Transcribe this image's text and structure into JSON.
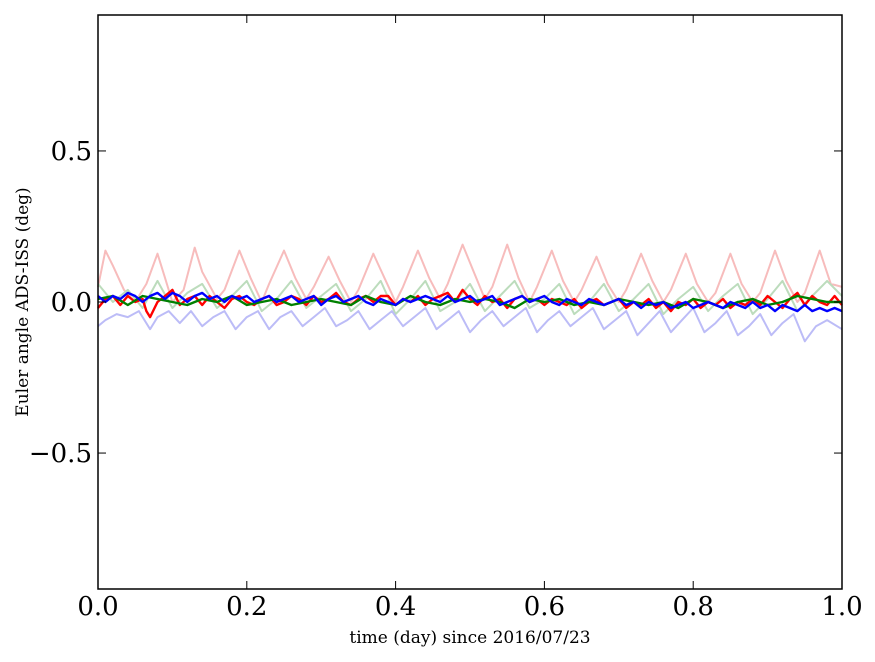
{
  "chart_data": {
    "type": "line",
    "xlabel": "time (day) since 2016/07/23",
    "ylabel": "Euler angle ADS-ISS (deg)",
    "xlim": [
      0.0,
      1.0
    ],
    "ylim": [
      -0.95,
      0.95
    ],
    "grid": false,
    "x_ticks": [
      "0.0",
      "0.2",
      "0.4",
      "0.6",
      "0.8",
      "1.0"
    ],
    "y_ticks": [
      "−0.5",
      "0.0",
      "0.5"
    ],
    "x_tick_values": [
      0.0,
      0.2,
      0.4,
      0.6,
      0.8,
      1.0
    ],
    "y_tick_values": [
      -0.5,
      0.0,
      0.5
    ],
    "colors": {
      "red": "#ff0000",
      "green": "#008000",
      "blue": "#0000ff",
      "light_red": "#f7bcbc",
      "light_green": "#bcdcbc",
      "light_blue": "#bcbcf7"
    },
    "series": [
      {
        "color": "#f7bcbc",
        "faded": true,
        "x": [
          0.0,
          0.01,
          0.02,
          0.035,
          0.05,
          0.065,
          0.08,
          0.09,
          0.1,
          0.115,
          0.13,
          0.14,
          0.16,
          0.17,
          0.19,
          0.205,
          0.22,
          0.23,
          0.25,
          0.265,
          0.28,
          0.29,
          0.31,
          0.325,
          0.34,
          0.35,
          0.37,
          0.385,
          0.4,
          0.41,
          0.43,
          0.445,
          0.46,
          0.47,
          0.49,
          0.505,
          0.52,
          0.53,
          0.55,
          0.565,
          0.58,
          0.59,
          0.61,
          0.625,
          0.64,
          0.65,
          0.67,
          0.685,
          0.7,
          0.71,
          0.73,
          0.745,
          0.76,
          0.77,
          0.79,
          0.805,
          0.82,
          0.83,
          0.85,
          0.865,
          0.88,
          0.89,
          0.91,
          0.925,
          0.94,
          0.95,
          0.97,
          0.985,
          1.0
        ],
        "y": [
          0.05,
          0.17,
          0.12,
          0.04,
          0.0,
          0.06,
          0.16,
          0.08,
          0.0,
          0.04,
          0.18,
          0.1,
          0.01,
          0.04,
          0.17,
          0.08,
          0.0,
          0.06,
          0.17,
          0.08,
          0.01,
          0.05,
          0.15,
          0.07,
          0.0,
          0.04,
          0.16,
          0.08,
          0.0,
          0.05,
          0.17,
          0.08,
          0.01,
          0.06,
          0.19,
          0.1,
          0.01,
          0.05,
          0.19,
          0.08,
          0.0,
          0.05,
          0.17,
          0.07,
          0.0,
          0.04,
          0.15,
          0.06,
          0.0,
          0.04,
          0.16,
          0.07,
          0.0,
          0.04,
          0.16,
          0.06,
          0.0,
          0.03,
          0.16,
          0.06,
          0.0,
          0.03,
          0.17,
          0.07,
          0.0,
          0.03,
          0.17,
          0.06,
          0.05
        ]
      },
      {
        "color": "#bcdcbc",
        "faded": true,
        "x": [
          0.0,
          0.02,
          0.04,
          0.06,
          0.08,
          0.1,
          0.12,
          0.14,
          0.16,
          0.18,
          0.2,
          0.22,
          0.24,
          0.26,
          0.28,
          0.3,
          0.32,
          0.34,
          0.36,
          0.38,
          0.4,
          0.42,
          0.44,
          0.46,
          0.48,
          0.5,
          0.52,
          0.54,
          0.56,
          0.58,
          0.6,
          0.62,
          0.64,
          0.66,
          0.68,
          0.7,
          0.72,
          0.74,
          0.76,
          0.78,
          0.8,
          0.82,
          0.84,
          0.86,
          0.88,
          0.9,
          0.92,
          0.94,
          0.96,
          0.98,
          1.0
        ],
        "y": [
          0.06,
          0.0,
          0.04,
          -0.02,
          0.07,
          -0.02,
          0.03,
          0.06,
          -0.02,
          0.02,
          0.07,
          -0.03,
          0.01,
          0.07,
          -0.02,
          0.02,
          0.06,
          -0.03,
          0.01,
          0.07,
          -0.04,
          0.01,
          0.07,
          -0.03,
          0.0,
          0.06,
          -0.03,
          0.02,
          0.07,
          -0.02,
          0.01,
          0.06,
          -0.04,
          0.0,
          0.06,
          -0.03,
          0.01,
          0.06,
          -0.04,
          0.01,
          0.05,
          -0.03,
          0.02,
          0.06,
          -0.04,
          0.01,
          0.07,
          -0.03,
          0.02,
          0.07,
          0.02
        ]
      },
      {
        "color": "#bcbcf7",
        "faded": true,
        "x": [
          0.0,
          0.01,
          0.025,
          0.04,
          0.055,
          0.07,
          0.08,
          0.095,
          0.11,
          0.125,
          0.14,
          0.155,
          0.17,
          0.185,
          0.2,
          0.215,
          0.23,
          0.245,
          0.26,
          0.275,
          0.29,
          0.305,
          0.32,
          0.335,
          0.35,
          0.365,
          0.38,
          0.395,
          0.41,
          0.425,
          0.44,
          0.455,
          0.47,
          0.485,
          0.5,
          0.515,
          0.53,
          0.545,
          0.56,
          0.575,
          0.59,
          0.605,
          0.62,
          0.635,
          0.65,
          0.665,
          0.68,
          0.695,
          0.71,
          0.725,
          0.74,
          0.755,
          0.77,
          0.785,
          0.8,
          0.815,
          0.83,
          0.845,
          0.86,
          0.875,
          0.89,
          0.905,
          0.92,
          0.935,
          0.95,
          0.965,
          0.98,
          1.0
        ],
        "y": [
          -0.08,
          -0.06,
          -0.04,
          -0.05,
          -0.03,
          -0.09,
          -0.05,
          -0.03,
          -0.07,
          -0.03,
          -0.08,
          -0.05,
          -0.03,
          -0.09,
          -0.05,
          -0.03,
          -0.09,
          -0.05,
          -0.03,
          -0.08,
          -0.05,
          -0.02,
          -0.08,
          -0.06,
          -0.03,
          -0.09,
          -0.06,
          -0.03,
          -0.08,
          -0.05,
          -0.02,
          -0.09,
          -0.06,
          -0.03,
          -0.1,
          -0.06,
          -0.03,
          -0.08,
          -0.05,
          -0.02,
          -0.1,
          -0.06,
          -0.03,
          -0.08,
          -0.05,
          -0.02,
          -0.09,
          -0.06,
          -0.03,
          -0.11,
          -0.07,
          -0.03,
          -0.1,
          -0.06,
          -0.02,
          -0.1,
          -0.07,
          -0.03,
          -0.11,
          -0.08,
          -0.04,
          -0.11,
          -0.07,
          -0.04,
          -0.13,
          -0.08,
          -0.06,
          -0.09
        ]
      },
      {
        "color": "#ff0000",
        "faded": false,
        "x": [
          0.0,
          0.01,
          0.02,
          0.03,
          0.04,
          0.05,
          0.06,
          0.065,
          0.07,
          0.08,
          0.09,
          0.1,
          0.11,
          0.12,
          0.13,
          0.14,
          0.15,
          0.16,
          0.17,
          0.18,
          0.19,
          0.2,
          0.21,
          0.22,
          0.23,
          0.24,
          0.25,
          0.26,
          0.27,
          0.28,
          0.29,
          0.3,
          0.31,
          0.32,
          0.33,
          0.34,
          0.35,
          0.36,
          0.37,
          0.38,
          0.39,
          0.4,
          0.41,
          0.42,
          0.43,
          0.44,
          0.45,
          0.46,
          0.47,
          0.48,
          0.49,
          0.5,
          0.51,
          0.52,
          0.53,
          0.54,
          0.55,
          0.56,
          0.57,
          0.58,
          0.59,
          0.6,
          0.61,
          0.62,
          0.63,
          0.64,
          0.65,
          0.66,
          0.67,
          0.68,
          0.69,
          0.7,
          0.71,
          0.72,
          0.73,
          0.74,
          0.75,
          0.76,
          0.77,
          0.78,
          0.79,
          0.8,
          0.81,
          0.82,
          0.83,
          0.84,
          0.85,
          0.86,
          0.87,
          0.88,
          0.89,
          0.9,
          0.91,
          0.92,
          0.93,
          0.94,
          0.95,
          0.96,
          0.97,
          0.98,
          0.99,
          1.0
        ],
        "y": [
          -0.02,
          0.01,
          0.02,
          -0.01,
          0.02,
          0.0,
          0.01,
          -0.03,
          -0.05,
          0.0,
          0.02,
          0.04,
          -0.01,
          0.01,
          0.02,
          -0.01,
          0.02,
          0.0,
          -0.02,
          0.01,
          0.02,
          0.0,
          -0.01,
          0.01,
          0.02,
          -0.01,
          0.0,
          0.02,
          0.01,
          -0.01,
          0.02,
          0.0,
          0.01,
          0.03,
          0.0,
          -0.01,
          0.01,
          0.02,
          0.0,
          0.02,
          0.02,
          -0.01,
          0.01,
          0.0,
          0.02,
          -0.01,
          0.01,
          0.02,
          0.03,
          0.0,
          0.04,
          0.01,
          -0.01,
          0.02,
          0.0,
          0.01,
          -0.02,
          0.01,
          0.02,
          0.0,
          0.01,
          -0.01,
          0.01,
          0.0,
          -0.01,
          0.01,
          -0.02,
          0.0,
          0.01,
          -0.01,
          0.0,
          0.01,
          -0.02,
          0.0,
          -0.01,
          0.01,
          -0.02,
          0.0,
          -0.03,
          0.0,
          -0.01,
          0.01,
          -0.02,
          0.0,
          -0.01,
          0.01,
          -0.02,
          0.0,
          -0.01,
          0.01,
          -0.01,
          0.02,
          0.0,
          -0.02,
          0.01,
          0.03,
          -0.01,
          0.02,
          0.0,
          -0.01,
          0.02,
          -0.01
        ]
      },
      {
        "color": "#008000",
        "faded": false,
        "x": [
          0.0,
          0.02,
          0.04,
          0.06,
          0.08,
          0.1,
          0.12,
          0.14,
          0.16,
          0.18,
          0.2,
          0.22,
          0.24,
          0.26,
          0.28,
          0.3,
          0.32,
          0.34,
          0.36,
          0.38,
          0.4,
          0.42,
          0.44,
          0.46,
          0.48,
          0.5,
          0.52,
          0.54,
          0.56,
          0.58,
          0.6,
          0.62,
          0.64,
          0.66,
          0.68,
          0.7,
          0.72,
          0.74,
          0.76,
          0.78,
          0.8,
          0.82,
          0.84,
          0.86,
          0.88,
          0.9,
          0.92,
          0.94,
          0.96,
          0.98,
          1.0
        ],
        "y": [
          0.01,
          0.02,
          -0.01,
          0.02,
          0.01,
          0.0,
          -0.01,
          0.01,
          0.0,
          0.02,
          -0.01,
          0.0,
          0.01,
          -0.01,
          0.0,
          0.01,
          0.0,
          -0.01,
          0.02,
          0.0,
          -0.01,
          0.02,
          0.0,
          -0.01,
          0.01,
          0.0,
          0.01,
          0.0,
          -0.02,
          0.01,
          0.0,
          0.01,
          -0.01,
          0.0,
          -0.01,
          0.01,
          0.0,
          -0.01,
          0.0,
          -0.02,
          0.01,
          0.0,
          -0.02,
          0.0,
          0.01,
          -0.01,
          0.0,
          0.02,
          0.01,
          0.0,
          0.0
        ]
      },
      {
        "color": "#0000ff",
        "faded": false,
        "x": [
          0.0,
          0.01,
          0.02,
          0.03,
          0.04,
          0.05,
          0.06,
          0.07,
          0.08,
          0.09,
          0.1,
          0.11,
          0.12,
          0.13,
          0.14,
          0.15,
          0.16,
          0.17,
          0.18,
          0.19,
          0.2,
          0.21,
          0.22,
          0.23,
          0.24,
          0.25,
          0.26,
          0.27,
          0.28,
          0.29,
          0.3,
          0.31,
          0.32,
          0.33,
          0.34,
          0.35,
          0.36,
          0.37,
          0.38,
          0.39,
          0.4,
          0.41,
          0.42,
          0.43,
          0.44,
          0.45,
          0.46,
          0.47,
          0.48,
          0.49,
          0.5,
          0.51,
          0.52,
          0.53,
          0.54,
          0.55,
          0.56,
          0.57,
          0.58,
          0.59,
          0.6,
          0.61,
          0.62,
          0.63,
          0.64,
          0.65,
          0.66,
          0.67,
          0.68,
          0.69,
          0.7,
          0.71,
          0.72,
          0.73,
          0.74,
          0.75,
          0.76,
          0.77,
          0.78,
          0.79,
          0.8,
          0.81,
          0.82,
          0.83,
          0.84,
          0.85,
          0.86,
          0.87,
          0.88,
          0.89,
          0.9,
          0.91,
          0.92,
          0.93,
          0.94,
          0.95,
          0.96,
          0.97,
          0.98,
          0.99,
          1.0
        ],
        "y": [
          0.02,
          0.0,
          0.02,
          0.01,
          0.03,
          0.02,
          0.0,
          0.02,
          0.03,
          0.01,
          0.03,
          0.02,
          0.0,
          0.02,
          0.03,
          0.01,
          0.02,
          0.0,
          0.02,
          0.01,
          0.02,
          0.0,
          0.01,
          0.02,
          0.0,
          0.01,
          0.02,
          0.0,
          0.01,
          0.02,
          -0.01,
          0.01,
          0.02,
          0.0,
          0.01,
          0.02,
          0.0,
          -0.01,
          0.01,
          0.0,
          -0.01,
          0.01,
          0.0,
          0.01,
          0.02,
          0.01,
          0.0,
          0.02,
          0.0,
          0.01,
          0.02,
          0.0,
          0.01,
          0.02,
          -0.01,
          0.0,
          0.01,
          0.02,
          0.0,
          0.01,
          0.02,
          0.0,
          -0.01,
          0.01,
          0.0,
          -0.01,
          0.01,
          0.0,
          -0.01,
          0.0,
          0.01,
          -0.01,
          0.0,
          -0.02,
          0.0,
          -0.01,
          0.0,
          -0.02,
          -0.01,
          0.0,
          -0.02,
          -0.01,
          0.0,
          -0.01,
          -0.02,
          0.0,
          -0.01,
          -0.02,
          0.0,
          -0.02,
          -0.01,
          -0.03,
          -0.01,
          -0.02,
          -0.03,
          -0.01,
          -0.03,
          -0.02,
          -0.03,
          -0.02,
          -0.03
        ]
      }
    ]
  }
}
